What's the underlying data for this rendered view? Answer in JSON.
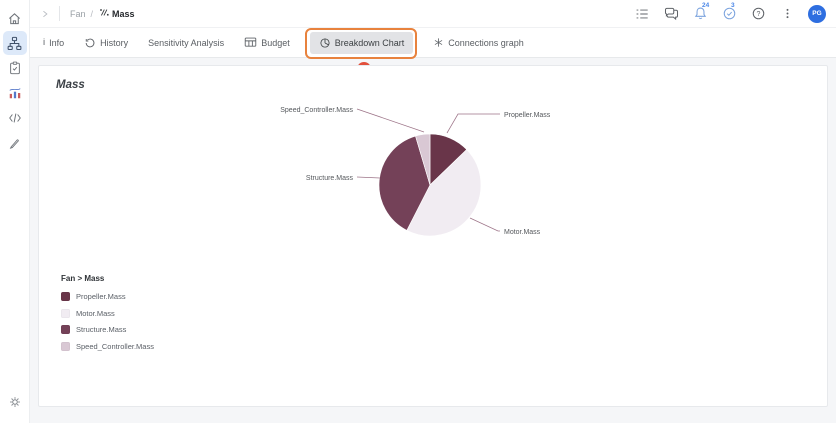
{
  "topbar": {
    "breadcrumb": {
      "project": "Fan",
      "separator": "/",
      "item": "Mass"
    },
    "badges": {
      "notifications": "24",
      "tasks": "3"
    },
    "avatar_initials": "PG"
  },
  "sidebar": {
    "items": [
      {
        "name": "home"
      },
      {
        "name": "model-tree",
        "selected": true
      },
      {
        "name": "requirements"
      },
      {
        "name": "analyses"
      },
      {
        "name": "scripting"
      },
      {
        "name": "edit"
      },
      {
        "name": "settings"
      }
    ]
  },
  "tabs": [
    {
      "label": "Info"
    },
    {
      "label": "History"
    },
    {
      "label": "Sensitivity Analysis"
    },
    {
      "label": "Budget"
    },
    {
      "label": "Breakdown Chart",
      "selected": true,
      "highlighted": true
    },
    {
      "label": "Connections graph"
    }
  ],
  "annotation": {
    "step": "1"
  },
  "content": {
    "title": "Mass"
  },
  "chart_data": {
    "type": "pie",
    "title": "Mass",
    "legend_title": "Fan > Mass",
    "slices": [
      {
        "label": "Propeller.Mass",
        "value": 12.8,
        "color": "#693549"
      },
      {
        "label": "Motor.Mass",
        "value": 44.7,
        "color": "#f1ecf2"
      },
      {
        "label": "Structure.Mass",
        "value": 37.9,
        "color": "#744158"
      },
      {
        "label": "Speed_Controller.Mass",
        "value": 4.6,
        "color": "#d9c8d4"
      }
    ],
    "start_angle_deg": -90,
    "direction": "clockwise",
    "legend_position": "bottom-left",
    "data_labels": "callout-lines"
  },
  "colors": {
    "highlight_ring": "#e8823d",
    "step_badge": "#e2503c",
    "accent_blue": "#2e6ee0",
    "icon_blue": "#7ba3de"
  }
}
